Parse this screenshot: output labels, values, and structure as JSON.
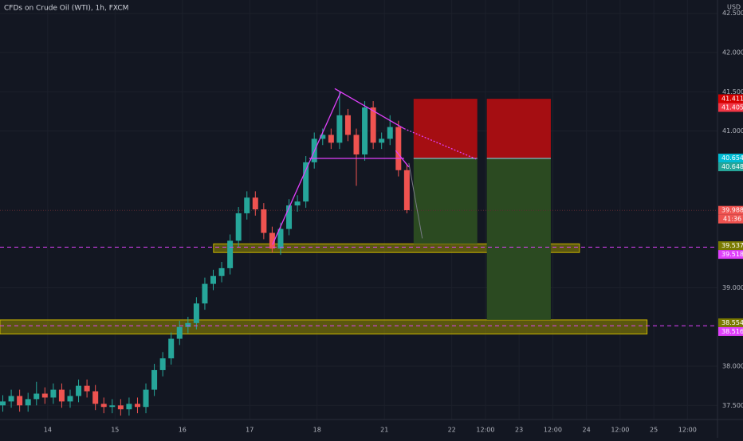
{
  "chart_data": {
    "type": "candlestick",
    "title": "CFDs on Crude Oil (WTI), 1h, FXCM",
    "currency": "USD",
    "up_color": "#26a69a",
    "down_color": "#ef5350",
    "grid": true,
    "xlim": [
      -17,
      238.7
    ],
    "ylim": [
      37.32,
      42.67
    ],
    "xticks": [
      {
        "value": 0,
        "label": "14"
      },
      {
        "value": 24,
        "label": "15"
      },
      {
        "value": 48,
        "label": "16"
      },
      {
        "value": 72,
        "label": "17"
      },
      {
        "value": 96,
        "label": "18"
      },
      {
        "value": 120,
        "label": "21"
      },
      {
        "value": 144,
        "label": "22"
      },
      {
        "value": 156,
        "label": "12:00"
      },
      {
        "value": 168,
        "label": "23"
      },
      {
        "value": 180,
        "label": "12:00"
      },
      {
        "value": 192,
        "label": "24"
      },
      {
        "value": 204,
        "label": "12:00"
      },
      {
        "value": 216,
        "label": "25"
      },
      {
        "value": 228,
        "label": "12:00"
      }
    ],
    "yticks": [
      {
        "value": 42.5,
        "label": "42.500"
      },
      {
        "value": 42,
        "label": "42.000"
      },
      {
        "value": 41.5,
        "label": "41.500"
      },
      {
        "value": 41,
        "label": "41.000"
      },
      {
        "value": 39,
        "label": "39.000"
      },
      {
        "value": 38,
        "label": "38.000"
      },
      {
        "value": 37.5,
        "label": "37.500"
      }
    ],
    "x": [
      -16,
      -13,
      -10,
      -7,
      -4,
      -1,
      2,
      5,
      8,
      11,
      14,
      17,
      20,
      23,
      26,
      29,
      32,
      35,
      38,
      41,
      44,
      47,
      50,
      53,
      56,
      59,
      62,
      65,
      68,
      71,
      74,
      77,
      80,
      83,
      86,
      89,
      92,
      95,
      98,
      101,
      104,
      107,
      110,
      113,
      116,
      119,
      122,
      125,
      128
    ],
    "open": [
      37.5,
      37.55,
      37.62,
      37.5,
      37.58,
      37.65,
      37.6,
      37.7,
      37.55,
      37.62,
      37.75,
      37.68,
      37.52,
      37.48,
      37.5,
      37.45,
      37.52,
      37.48,
      37.7,
      37.95,
      38.1,
      38.35,
      38.5,
      38.55,
      38.8,
      39.05,
      39.15,
      39.25,
      39.6,
      39.95,
      40.15,
      40.0,
      39.7,
      39.5,
      39.75,
      40.05,
      40.1,
      40.6,
      40.9,
      40.95,
      40.85,
      41.2,
      40.95,
      40.7,
      41.3,
      40.85,
      40.9,
      41.05,
      40.5
    ],
    "high": [
      37.63,
      37.7,
      37.7,
      37.66,
      37.8,
      37.73,
      37.78,
      37.78,
      37.7,
      37.83,
      37.83,
      37.76,
      37.6,
      37.58,
      37.58,
      37.6,
      37.6,
      37.78,
      38.03,
      38.18,
      38.43,
      38.58,
      38.63,
      38.88,
      39.13,
      39.23,
      39.33,
      39.68,
      40.03,
      40.23,
      40.23,
      40.08,
      39.78,
      39.83,
      40.13,
      40.18,
      40.68,
      40.98,
      41.03,
      41.03,
      41.5,
      41.28,
      41.03,
      41.38,
      41.38,
      40.98,
      41.2,
      41.13,
      40.58
    ],
    "low": [
      37.42,
      37.47,
      37.42,
      37.42,
      37.5,
      37.52,
      37.52,
      37.47,
      37.47,
      37.54,
      37.6,
      37.44,
      37.4,
      37.4,
      37.37,
      37.37,
      37.4,
      37.4,
      37.62,
      37.87,
      38.02,
      38.27,
      38.42,
      38.47,
      38.72,
      38.97,
      39.07,
      39.17,
      39.52,
      39.87,
      39.92,
      39.62,
      39.45,
      39.42,
      39.67,
      39.97,
      40.02,
      40.52,
      40.82,
      40.77,
      40.77,
      40.87,
      40.3,
      40.62,
      40.77,
      40.77,
      40.82,
      40.42,
      39.95
    ],
    "close": [
      37.55,
      37.62,
      37.5,
      37.58,
      37.65,
      37.6,
      37.7,
      37.55,
      37.62,
      37.75,
      37.68,
      37.52,
      37.48,
      37.5,
      37.45,
      37.52,
      37.48,
      37.7,
      37.95,
      38.1,
      38.35,
      38.5,
      38.55,
      38.8,
      39.05,
      39.15,
      39.25,
      39.6,
      39.95,
      40.15,
      40.0,
      39.7,
      39.5,
      39.75,
      40.05,
      40.1,
      40.6,
      40.9,
      40.95,
      40.85,
      41.2,
      40.95,
      40.7,
      41.3,
      40.85,
      40.9,
      41.05,
      40.5,
      39.99
    ],
    "zones": [
      {
        "x": [
          59.1,
          189.5
        ],
        "y": [
          39.45,
          39.56
        ]
      },
      {
        "x": [
          -17,
          213.6
        ],
        "y": [
          38.41,
          38.59
        ]
      }
    ],
    "positions": [
      {
        "x": [
          130.4,
          153.1
        ],
        "stop": 41.41,
        "entry": 40.65,
        "target": 39.56
      },
      {
        "x": [
          156.5,
          179.3
        ],
        "stop": 41.41,
        "entry": 40.65,
        "target": 38.59
      }
    ],
    "levels": [
      39.518,
      38.516
    ],
    "current_price": 39.988,
    "trend_lines": [
      {
        "points": [
          [
            80.1,
            39.55
          ],
          [
            104.5,
            41.5
          ]
        ],
        "style": "solid"
      },
      {
        "points": [
          [
            102.3,
            41.54
          ],
          [
            127,
            41.03
          ]
        ],
        "style": "solid"
      },
      {
        "points": [
          [
            127,
            41.03
          ],
          [
            152.8,
            40.64
          ]
        ],
        "style": "dotted"
      },
      {
        "points": [
          [
            93.2,
            40.65
          ],
          [
            127,
            40.65
          ]
        ],
        "style": "solid"
      },
      {
        "points": [
          [
            124,
            40.75
          ],
          [
            128.7,
            40.54
          ]
        ],
        "style": "solid"
      }
    ],
    "projection": [
      [
        128.7,
        40.59
      ],
      [
        133.5,
        39.63
      ]
    ],
    "price_labels": [
      {
        "value": 41.411,
        "color": "#d50000"
      },
      {
        "value": 41.405,
        "color": "#f23645"
      },
      {
        "value": 40.654,
        "color": "#00bcd4"
      },
      {
        "value": 40.648,
        "color": "#26a69a"
      },
      {
        "value": 39.988,
        "color": "#ef5350"
      },
      {
        "value": 39.537,
        "color": "#7a7a00"
      },
      {
        "value": 39.518,
        "color": "#e040fb"
      },
      {
        "value": 38.554,
        "color": "#7a7a00"
      },
      {
        "value": 38.516,
        "color": "#e040fb"
      }
    ],
    "countdown": "41:36"
  }
}
